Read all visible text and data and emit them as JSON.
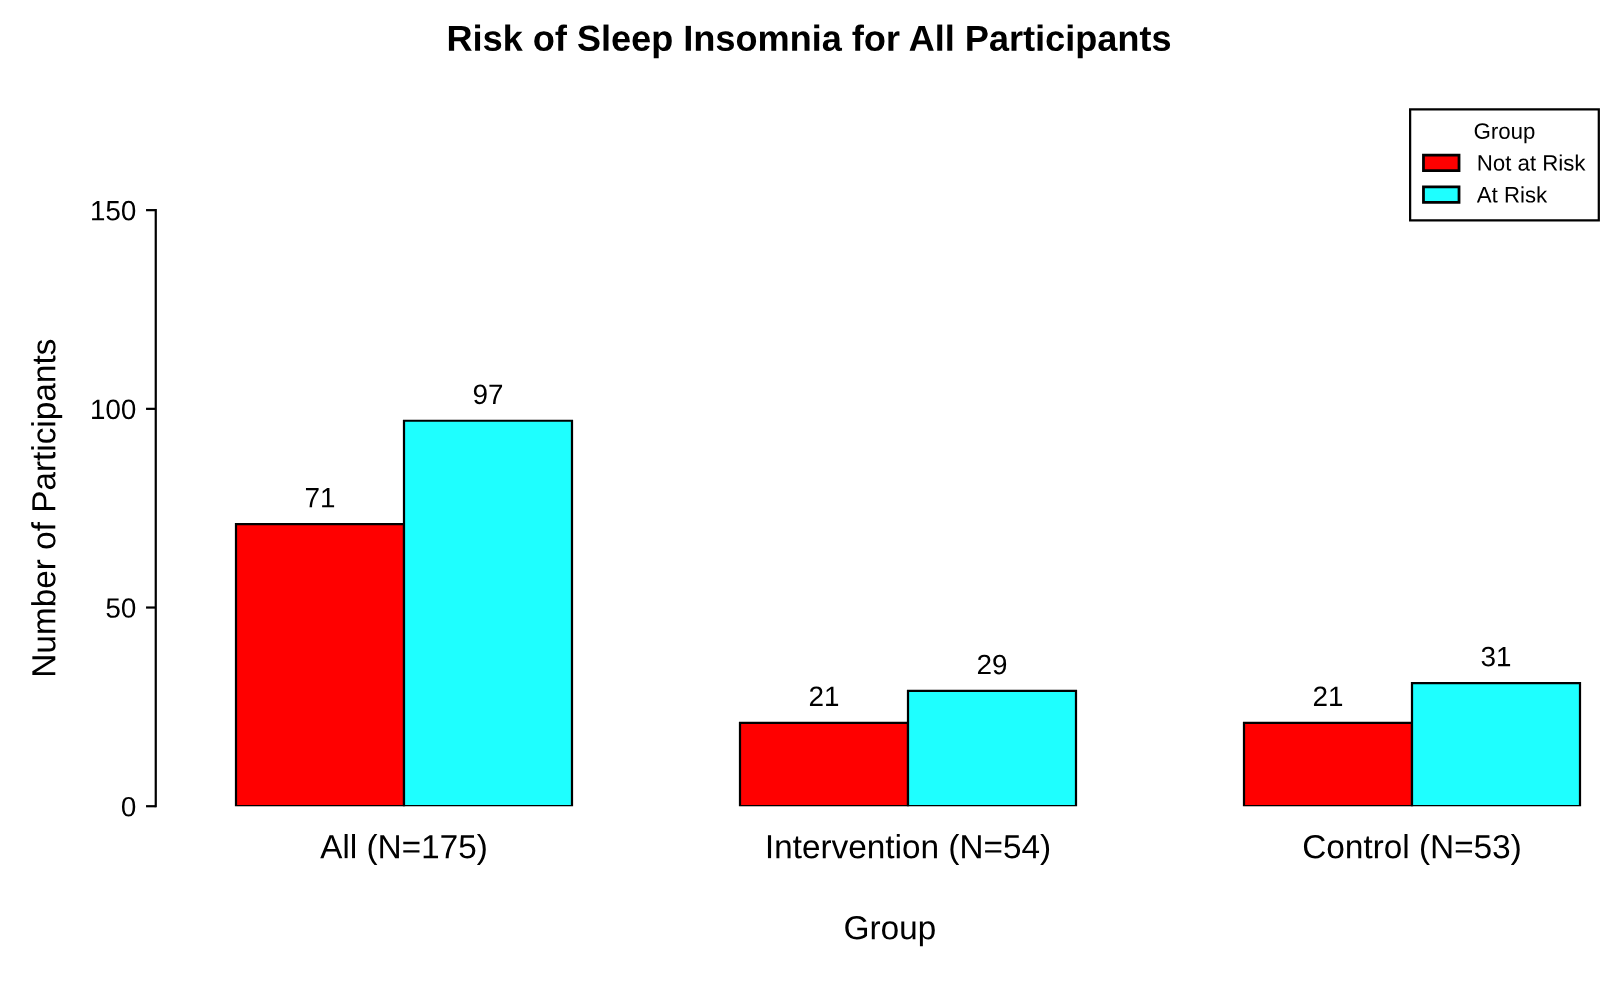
{
  "chart_data": {
    "type": "bar",
    "title": "Risk of Sleep Insomnia for All Participants",
    "xlabel": "Group",
    "ylabel": "Number of Participants",
    "legend_title": "Group",
    "categories": [
      "All (N=175)",
      "Intervention (N=54)",
      "Control (N=53)"
    ],
    "series": [
      {
        "name": "Not at Risk",
        "color": "#ff0000",
        "values": [
          71,
          21,
          21
        ]
      },
      {
        "name": "At Risk",
        "color": "#1effff",
        "values": [
          97,
          29,
          31
        ]
      }
    ],
    "ylim": [
      0,
      150
    ],
    "yticks": [
      0,
      50,
      100,
      150
    ],
    "data_labels": true,
    "grid": false,
    "legend": "top right"
  }
}
